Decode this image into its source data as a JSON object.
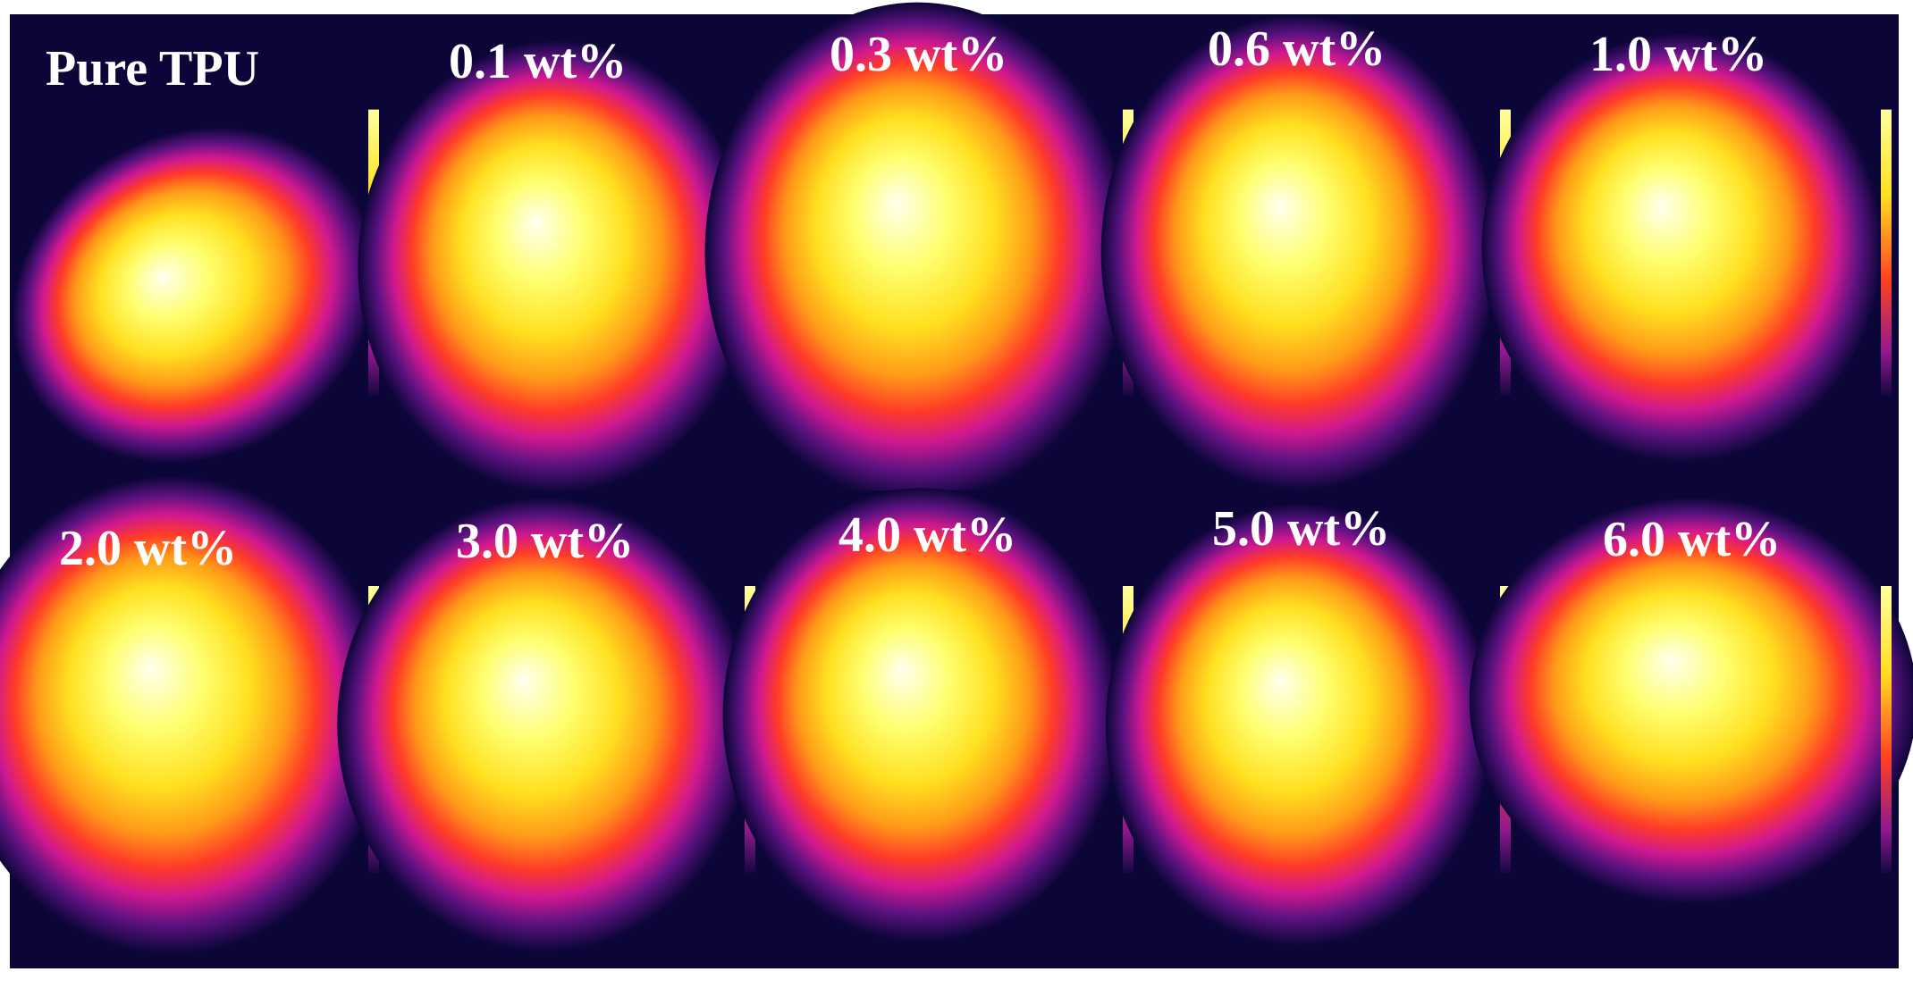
{
  "panels": [
    {
      "label": "Pure TPU"
    },
    {
      "label": "0.1 wt%"
    },
    {
      "label": "0.3 wt%"
    },
    {
      "label": "0.6 wt%"
    },
    {
      "label": "1.0 wt%"
    },
    {
      "label": "2.0 wt%"
    },
    {
      "label": "3.0 wt%"
    },
    {
      "label": "4.0 wt%"
    },
    {
      "label": "5.0 wt%"
    },
    {
      "label": "6.0 wt%"
    }
  ]
}
